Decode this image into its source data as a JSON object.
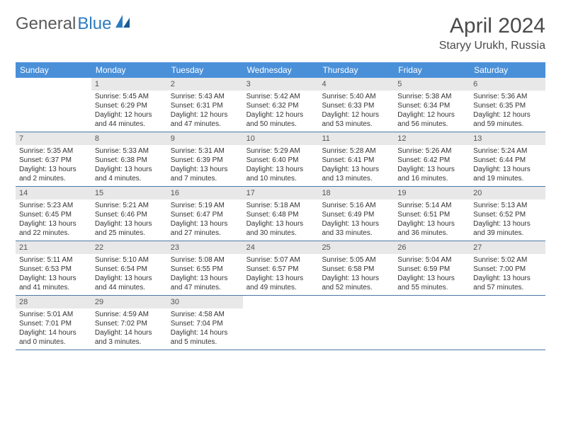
{
  "logo": {
    "part1": "General",
    "part2": "Blue"
  },
  "title": "April 2024",
  "location": "Staryy Urukh, Russia",
  "day_headers": [
    "Sunday",
    "Monday",
    "Tuesday",
    "Wednesday",
    "Thursday",
    "Friday",
    "Saturday"
  ],
  "colors": {
    "header_bg": "#4a90d9",
    "daynum_bg": "#e8e8e8",
    "week_border": "#4a78a5",
    "logo_blue": "#2d7bbf"
  },
  "weeks": [
    [
      {
        "n": "",
        "sr": "",
        "ss": "",
        "dl": ""
      },
      {
        "n": "1",
        "sr": "Sunrise: 5:45 AM",
        "ss": "Sunset: 6:29 PM",
        "dl": "Daylight: 12 hours and 44 minutes."
      },
      {
        "n": "2",
        "sr": "Sunrise: 5:43 AM",
        "ss": "Sunset: 6:31 PM",
        "dl": "Daylight: 12 hours and 47 minutes."
      },
      {
        "n": "3",
        "sr": "Sunrise: 5:42 AM",
        "ss": "Sunset: 6:32 PM",
        "dl": "Daylight: 12 hours and 50 minutes."
      },
      {
        "n": "4",
        "sr": "Sunrise: 5:40 AM",
        "ss": "Sunset: 6:33 PM",
        "dl": "Daylight: 12 hours and 53 minutes."
      },
      {
        "n": "5",
        "sr": "Sunrise: 5:38 AM",
        "ss": "Sunset: 6:34 PM",
        "dl": "Daylight: 12 hours and 56 minutes."
      },
      {
        "n": "6",
        "sr": "Sunrise: 5:36 AM",
        "ss": "Sunset: 6:35 PM",
        "dl": "Daylight: 12 hours and 59 minutes."
      }
    ],
    [
      {
        "n": "7",
        "sr": "Sunrise: 5:35 AM",
        "ss": "Sunset: 6:37 PM",
        "dl": "Daylight: 13 hours and 2 minutes."
      },
      {
        "n": "8",
        "sr": "Sunrise: 5:33 AM",
        "ss": "Sunset: 6:38 PM",
        "dl": "Daylight: 13 hours and 4 minutes."
      },
      {
        "n": "9",
        "sr": "Sunrise: 5:31 AM",
        "ss": "Sunset: 6:39 PM",
        "dl": "Daylight: 13 hours and 7 minutes."
      },
      {
        "n": "10",
        "sr": "Sunrise: 5:29 AM",
        "ss": "Sunset: 6:40 PM",
        "dl": "Daylight: 13 hours and 10 minutes."
      },
      {
        "n": "11",
        "sr": "Sunrise: 5:28 AM",
        "ss": "Sunset: 6:41 PM",
        "dl": "Daylight: 13 hours and 13 minutes."
      },
      {
        "n": "12",
        "sr": "Sunrise: 5:26 AM",
        "ss": "Sunset: 6:42 PM",
        "dl": "Daylight: 13 hours and 16 minutes."
      },
      {
        "n": "13",
        "sr": "Sunrise: 5:24 AM",
        "ss": "Sunset: 6:44 PM",
        "dl": "Daylight: 13 hours and 19 minutes."
      }
    ],
    [
      {
        "n": "14",
        "sr": "Sunrise: 5:23 AM",
        "ss": "Sunset: 6:45 PM",
        "dl": "Daylight: 13 hours and 22 minutes."
      },
      {
        "n": "15",
        "sr": "Sunrise: 5:21 AM",
        "ss": "Sunset: 6:46 PM",
        "dl": "Daylight: 13 hours and 25 minutes."
      },
      {
        "n": "16",
        "sr": "Sunrise: 5:19 AM",
        "ss": "Sunset: 6:47 PM",
        "dl": "Daylight: 13 hours and 27 minutes."
      },
      {
        "n": "17",
        "sr": "Sunrise: 5:18 AM",
        "ss": "Sunset: 6:48 PM",
        "dl": "Daylight: 13 hours and 30 minutes."
      },
      {
        "n": "18",
        "sr": "Sunrise: 5:16 AM",
        "ss": "Sunset: 6:49 PM",
        "dl": "Daylight: 13 hours and 33 minutes."
      },
      {
        "n": "19",
        "sr": "Sunrise: 5:14 AM",
        "ss": "Sunset: 6:51 PM",
        "dl": "Daylight: 13 hours and 36 minutes."
      },
      {
        "n": "20",
        "sr": "Sunrise: 5:13 AM",
        "ss": "Sunset: 6:52 PM",
        "dl": "Daylight: 13 hours and 39 minutes."
      }
    ],
    [
      {
        "n": "21",
        "sr": "Sunrise: 5:11 AM",
        "ss": "Sunset: 6:53 PM",
        "dl": "Daylight: 13 hours and 41 minutes."
      },
      {
        "n": "22",
        "sr": "Sunrise: 5:10 AM",
        "ss": "Sunset: 6:54 PM",
        "dl": "Daylight: 13 hours and 44 minutes."
      },
      {
        "n": "23",
        "sr": "Sunrise: 5:08 AM",
        "ss": "Sunset: 6:55 PM",
        "dl": "Daylight: 13 hours and 47 minutes."
      },
      {
        "n": "24",
        "sr": "Sunrise: 5:07 AM",
        "ss": "Sunset: 6:57 PM",
        "dl": "Daylight: 13 hours and 49 minutes."
      },
      {
        "n": "25",
        "sr": "Sunrise: 5:05 AM",
        "ss": "Sunset: 6:58 PM",
        "dl": "Daylight: 13 hours and 52 minutes."
      },
      {
        "n": "26",
        "sr": "Sunrise: 5:04 AM",
        "ss": "Sunset: 6:59 PM",
        "dl": "Daylight: 13 hours and 55 minutes."
      },
      {
        "n": "27",
        "sr": "Sunrise: 5:02 AM",
        "ss": "Sunset: 7:00 PM",
        "dl": "Daylight: 13 hours and 57 minutes."
      }
    ],
    [
      {
        "n": "28",
        "sr": "Sunrise: 5:01 AM",
        "ss": "Sunset: 7:01 PM",
        "dl": "Daylight: 14 hours and 0 minutes."
      },
      {
        "n": "29",
        "sr": "Sunrise: 4:59 AM",
        "ss": "Sunset: 7:02 PM",
        "dl": "Daylight: 14 hours and 3 minutes."
      },
      {
        "n": "30",
        "sr": "Sunrise: 4:58 AM",
        "ss": "Sunset: 7:04 PM",
        "dl": "Daylight: 14 hours and 5 minutes."
      },
      {
        "n": "",
        "sr": "",
        "ss": "",
        "dl": ""
      },
      {
        "n": "",
        "sr": "",
        "ss": "",
        "dl": ""
      },
      {
        "n": "",
        "sr": "",
        "ss": "",
        "dl": ""
      },
      {
        "n": "",
        "sr": "",
        "ss": "",
        "dl": ""
      }
    ]
  ]
}
